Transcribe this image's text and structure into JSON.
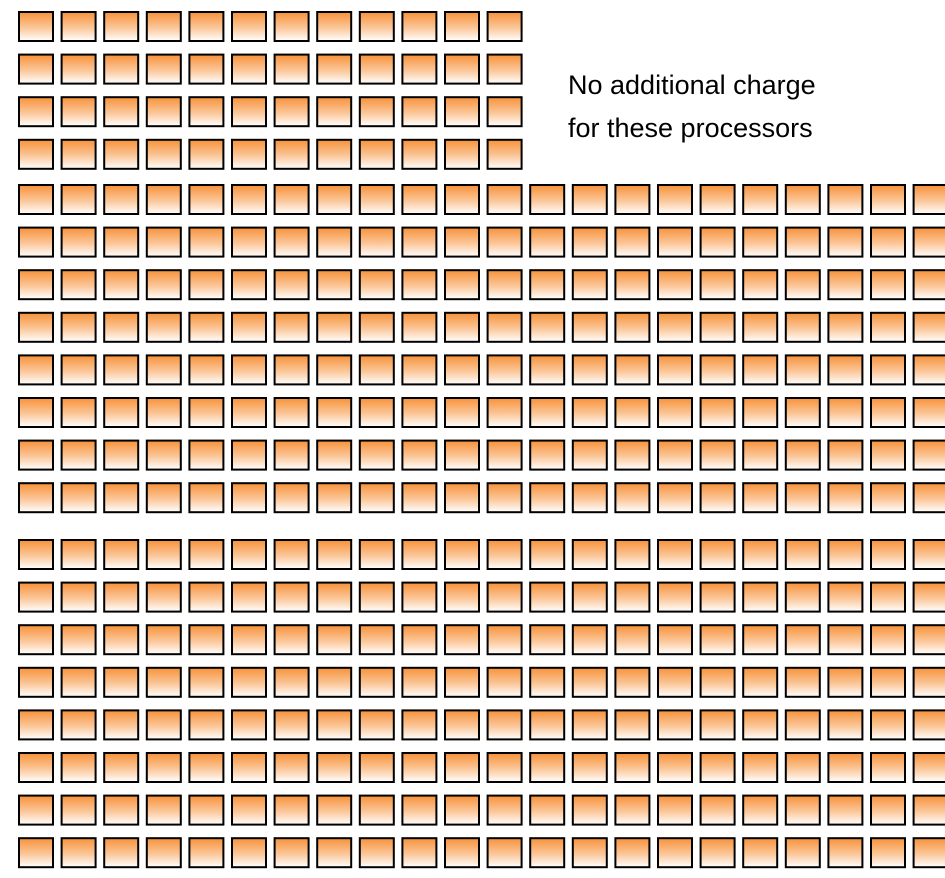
{
  "annotation": {
    "lines": [
      "No additional charge",
      "for these processors"
    ]
  }
}
